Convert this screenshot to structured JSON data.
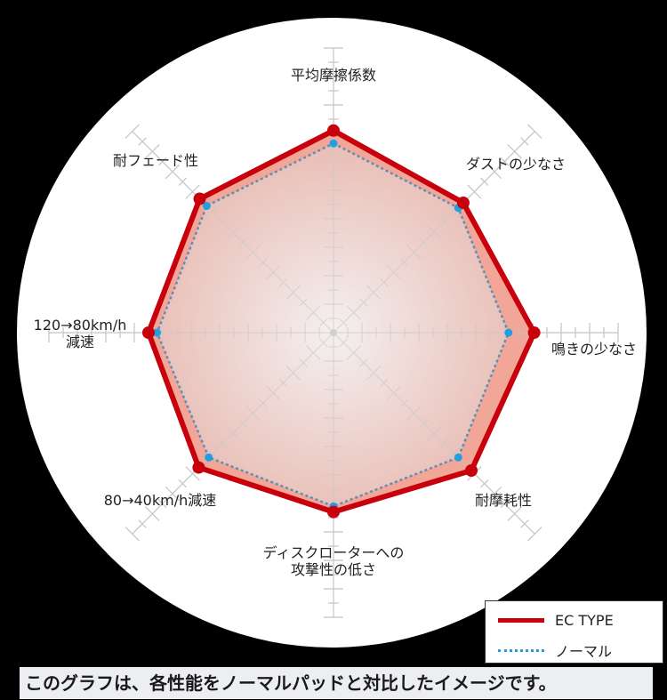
{
  "chart_data": {
    "type": "radar",
    "axes": [
      "平均摩擦係数",
      "ダストの少なさ",
      "鳴きの少なさ",
      "耐摩耗性",
      "ディスクローターへの\n攻撃性の低さ",
      "80→40km/h減速",
      "120→80km/h\n減速",
      "耐フェード性"
    ],
    "range": [
      0,
      20
    ],
    "series": [
      {
        "name": "EC TYPE",
        "values": [
          14.2,
          12.9,
          14.1,
          13.7,
          12.6,
          13.4,
          13.0,
          13.3
        ],
        "color": "#c8000c",
        "style": "solid"
      },
      {
        "name": "ノーマル",
        "values": [
          13.3,
          12.4,
          12.3,
          12.4,
          12.2,
          12.4,
          12.4,
          12.6
        ],
        "color": "#2a9ad8",
        "style": "dotted"
      }
    ],
    "grid": true,
    "legend": "bottom-right"
  },
  "caption": "このグラフは、各性能をノーマルパッドと対比したイメージです。"
}
